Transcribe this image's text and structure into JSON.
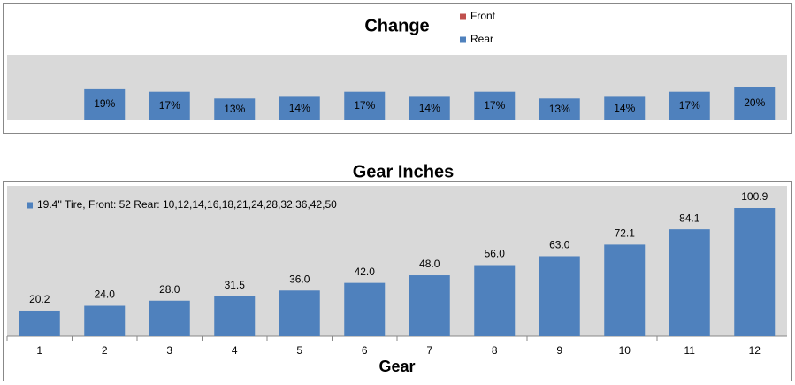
{
  "chart_data": [
    {
      "type": "bar",
      "title": "Change",
      "categories": [
        null,
        null,
        null,
        null,
        null,
        null,
        null,
        null,
        null,
        null,
        null,
        null
      ],
      "series": [
        {
          "name": "Front",
          "color": "#c0504d",
          "values": [
            null,
            null,
            null,
            null,
            null,
            null,
            null,
            null,
            null,
            null,
            null,
            null
          ]
        },
        {
          "name": "Rear",
          "color": "#4f81bd",
          "values": [
            null,
            19,
            17,
            13,
            14,
            17,
            14,
            17,
            13,
            14,
            17,
            20
          ],
          "value_labels": [
            null,
            "19%",
            "17%",
            "13%",
            "14%",
            "17%",
            "14%",
            "17%",
            "13%",
            "14%",
            "17%",
            "20%"
          ]
        }
      ]
    },
    {
      "type": "bar",
      "title": "Gear Inches",
      "x_label": "Gear",
      "categories": [
        "1",
        "2",
        "3",
        "4",
        "5",
        "6",
        "7",
        "8",
        "9",
        "10",
        "11",
        "12"
      ],
      "series": [
        {
          "name": "19.4'' Tire,  Front: 52 Rear: 10,12,14,16,18,21,24,28,32,36,42,50",
          "color": "#4f81bd",
          "values": [
            20.2,
            24.0,
            28.0,
            31.5,
            36.0,
            42.0,
            48.0,
            56.0,
            63.0,
            72.1,
            84.1,
            100.9
          ],
          "value_labels": [
            "20.2",
            "24.0",
            "28.0",
            "31.5",
            "36.0",
            "42.0",
            "48.0",
            "56.0",
            "63.0",
            "72.1",
            "84.1",
            "100.9"
          ]
        }
      ]
    }
  ]
}
